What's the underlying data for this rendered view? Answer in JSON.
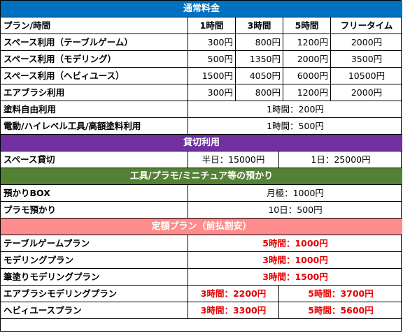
{
  "sections": {
    "regular": "通常料金",
    "charter": "貸切利用",
    "storage": "工具/プラモ/ミニチュア等の預かり",
    "plans": "定額プラン（前払割安）"
  },
  "header": {
    "label": "プラン/時間",
    "cols": [
      "1時間",
      "3時間",
      "5時間",
      "フリータイム"
    ]
  },
  "regular_rows": [
    {
      "label": "スペース利用（テーブルゲーム）",
      "v": [
        "300円",
        "800円",
        "1200円",
        "2000円"
      ]
    },
    {
      "label": "スペース利用（モデリング）",
      "v": [
        "500円",
        "1350円",
        "2000円",
        "3500円"
      ]
    },
    {
      "label": "スペース利用（ヘビィユース）",
      "v": [
        "1500円",
        "4050円",
        "6000円",
        "10500円"
      ]
    },
    {
      "label": "エアブラシ利用",
      "v": [
        "300円",
        "800円",
        "1200円",
        "2000円"
      ]
    }
  ],
  "regular_span_rows": [
    {
      "label": "塗料自由利用",
      "value": "1時間：200円"
    },
    {
      "label": "電動/ハイレベル工具/高額塗料利用",
      "value": "1時間：500円"
    }
  ],
  "charter_row": {
    "label": "スペース貸切",
    "half": "半日：15000円",
    "full": "1日：25000円"
  },
  "storage_rows": [
    {
      "label": "預かりBOX",
      "value": "月極：1000円"
    },
    {
      "label": "プラモ預かり",
      "value": "10日：500円"
    }
  ],
  "plan_rows": [
    {
      "label": "テーブルゲームプラン",
      "value": "5時間：1000円"
    },
    {
      "label": "モデリングプラン",
      "value": "3時間：1000円"
    },
    {
      "label": "筆塗りモデリングプラン",
      "value": "3時間：1500円"
    }
  ],
  "plan_split_rows": [
    {
      "label": "エアブラシモデリングプラン",
      "a": "3時間：2200円",
      "b": "5時間：3700円"
    },
    {
      "label": "ヘビィユースプラン",
      "a": "3時間：3300円",
      "b": "5時間：5600円"
    }
  ],
  "colors": {
    "regular_band": "#0070c0",
    "charter_band": "#7030a0",
    "storage_band": "#548235",
    "plans_band": "#ff8c8c",
    "plan_price_text": "#e60000"
  }
}
